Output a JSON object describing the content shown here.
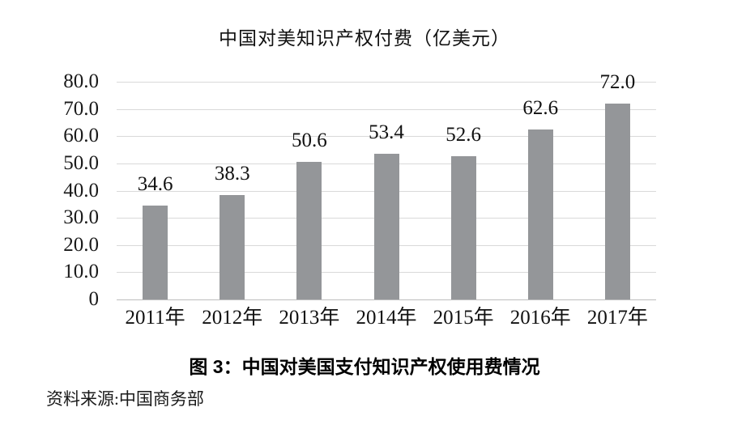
{
  "chart": {
    "title": "中国对美知识产权付费（亿美元）",
    "caption": "图 3：中国对美国支付知识产权使用费情况",
    "source": "资料来源:中国商务部"
  },
  "chart_data": {
    "type": "bar",
    "title": "中国对美知识产权付费（亿美元）",
    "categories": [
      "2011年",
      "2012年",
      "2013年",
      "2014年",
      "2015年",
      "2016年",
      "2017年"
    ],
    "values": [
      34.6,
      38.3,
      50.6,
      53.4,
      52.6,
      62.6,
      72.0
    ],
    "data_labels": [
      "34.6",
      "38.3",
      "50.6",
      "53.4",
      "52.6",
      "62.6",
      "72.0"
    ],
    "xlabel": "",
    "ylabel": "",
    "ylim": [
      0,
      80
    ],
    "y_ticks": [
      {
        "value": 80,
        "label": "80.0"
      },
      {
        "value": 70,
        "label": "70.0"
      },
      {
        "value": 60,
        "label": "60.0"
      },
      {
        "value": 50,
        "label": "50.0"
      },
      {
        "value": 40,
        "label": "40.0"
      },
      {
        "value": 30,
        "label": "30.0"
      },
      {
        "value": 20,
        "label": "20.0"
      },
      {
        "value": 10,
        "label": "10.0"
      },
      {
        "value": 0,
        "label": "0"
      }
    ],
    "grid": true,
    "legend_position": "none",
    "bar_color": "#949699",
    "gridline_color": "#d9d9d9",
    "axis_line_color": "#bdbdbd"
  }
}
